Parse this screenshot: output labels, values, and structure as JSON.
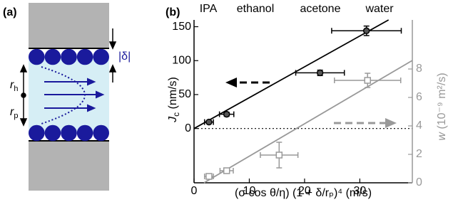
{
  "panel_a": {
    "label": "(a)",
    "delta": "|δ|",
    "r_h": {
      "main": "r",
      "sub": "h"
    },
    "r_p": {
      "main": "r",
      "sub": "p"
    }
  },
  "chart_data": {
    "type": "scatter",
    "panel_label": "(b)",
    "top_labels": [
      "IPA",
      "ethanol",
      "acetone",
      "water"
    ],
    "xlabel": "(σ cos θ/η) (1 + δ/rₚ)⁴ (m/s)",
    "ylabel": {
      "main": "J",
      "sub": "c",
      "unit": " (nm/s)"
    },
    "y2label": {
      "main": "w",
      "unit": " (10⁻⁹ m²/s)"
    },
    "xlim": [
      0,
      39.5
    ],
    "xticks": [
      0,
      10,
      20,
      30
    ],
    "ylim": [
      -80,
      160
    ],
    "yticks": [
      0,
      50,
      100,
      150
    ],
    "y2lim": [
      0,
      11.45
    ],
    "y2ticks": [
      0,
      2,
      4,
      6,
      8
    ],
    "series": [
      {
        "color": "#000000",
        "marker": "circle",
        "axis": "y",
        "x": [
          2.7,
          5.9,
          22.8,
          31.2
        ],
        "values": [
          9.5,
          21,
          82,
          144
        ],
        "x_errors": [
          0.8,
          1.3,
          4.4,
          6.3
        ],
        "errors": [
          2,
          3,
          4,
          7
        ]
      },
      {
        "color": "#999999",
        "marker": "square",
        "axis": "y2",
        "x": [
          2.7,
          5.9,
          15.4,
          31.4
        ],
        "values": [
          0.45,
          0.85,
          1.95,
          7.2
        ],
        "x_errors": [
          0.8,
          1.2,
          3.4,
          6
        ],
        "errors": [
          0.1,
          0.1,
          0.9,
          0.5
        ]
      }
    ],
    "fits": [
      {
        "color": "#000000",
        "axis": "y",
        "x": [
          0,
          35.2
        ],
        "values": [
          0,
          160
        ]
      },
      {
        "color": "#999999",
        "axis": "y2",
        "x": [
          1.8,
          39.5
        ],
        "values": [
          0,
          8.6
        ]
      }
    ]
  }
}
